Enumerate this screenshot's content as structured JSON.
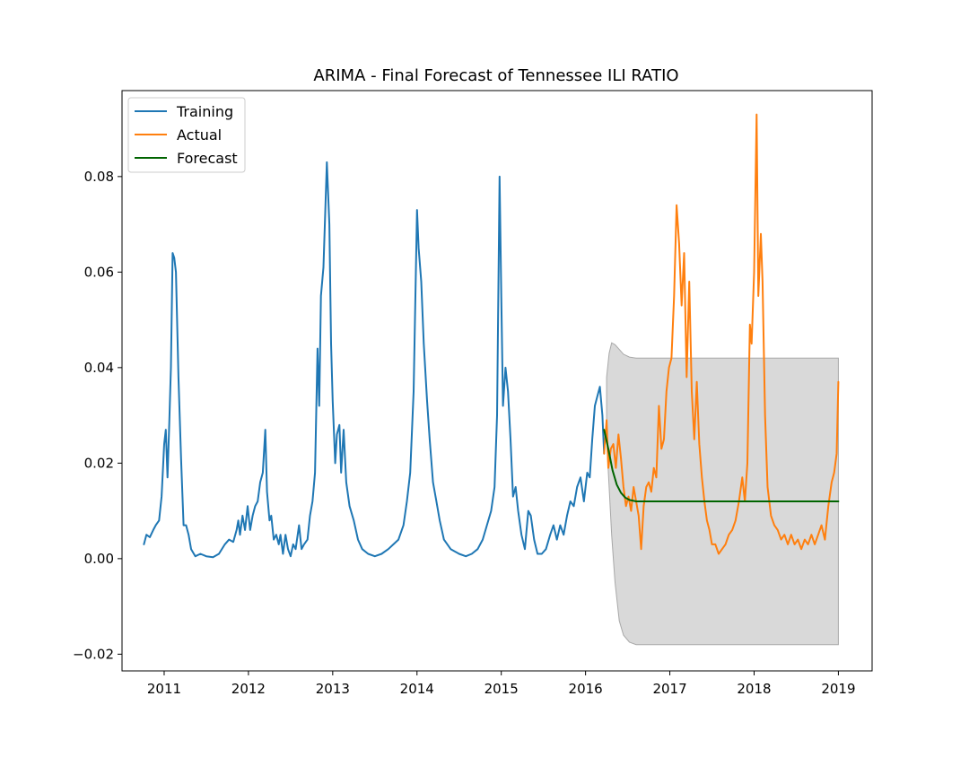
{
  "chart_data": {
    "type": "line",
    "title": "ARIMA - Final Forecast of Tennessee ILI RATIO",
    "xlabel": "",
    "ylabel": "",
    "xlim": [
      2010.5,
      2019.4
    ],
    "ylim": [
      -0.0235,
      0.098
    ],
    "x_ticks": [
      2011,
      2012,
      2013,
      2014,
      2015,
      2016,
      2017,
      2018,
      2019
    ],
    "x_tick_labels": [
      "2011",
      "2012",
      "2013",
      "2014",
      "2015",
      "2016",
      "2017",
      "2018",
      "2019"
    ],
    "y_ticks": [
      -0.02,
      0.0,
      0.02,
      0.04,
      0.06,
      0.08
    ],
    "y_tick_labels": [
      "−0.02",
      "0.00",
      "0.02",
      "0.04",
      "0.06",
      "0.08"
    ],
    "grid": false,
    "legend": {
      "position": "top-left",
      "entries": [
        "Training",
        "Actual",
        "Forecast"
      ]
    },
    "colors": {
      "Training": "#1f77b4",
      "Actual": "#ff7f0e",
      "Forecast": "#006400",
      "confidence_band": "#d9d9d9"
    },
    "series": [
      {
        "name": "Training",
        "points": [
          [
            2010.76,
            0.003
          ],
          [
            2010.79,
            0.005
          ],
          [
            2010.83,
            0.0045
          ],
          [
            2010.87,
            0.006
          ],
          [
            2010.9,
            0.007
          ],
          [
            2010.94,
            0.008
          ],
          [
            2010.97,
            0.013
          ],
          [
            2011.0,
            0.024
          ],
          [
            2011.02,
            0.027
          ],
          [
            2011.04,
            0.017
          ],
          [
            2011.06,
            0.028
          ],
          [
            2011.08,
            0.04
          ],
          [
            2011.1,
            0.064
          ],
          [
            2011.12,
            0.063
          ],
          [
            2011.14,
            0.06
          ],
          [
            2011.17,
            0.038
          ],
          [
            2011.2,
            0.021
          ],
          [
            2011.23,
            0.007
          ],
          [
            2011.26,
            0.007
          ],
          [
            2011.29,
            0.005
          ],
          [
            2011.32,
            0.002
          ],
          [
            2011.37,
            0.0005
          ],
          [
            2011.43,
            0.001
          ],
          [
            2011.5,
            0.0005
          ],
          [
            2011.58,
            0.0003
          ],
          [
            2011.65,
            0.001
          ],
          [
            2011.72,
            0.003
          ],
          [
            2011.77,
            0.004
          ],
          [
            2011.82,
            0.0035
          ],
          [
            2011.86,
            0.006
          ],
          [
            2011.88,
            0.008
          ],
          [
            2011.9,
            0.005
          ],
          [
            2011.93,
            0.009
          ],
          [
            2011.96,
            0.006
          ],
          [
            2011.99,
            0.011
          ],
          [
            2012.02,
            0.006
          ],
          [
            2012.05,
            0.009
          ],
          [
            2012.08,
            0.011
          ],
          [
            2012.11,
            0.012
          ],
          [
            2012.14,
            0.016
          ],
          [
            2012.17,
            0.018
          ],
          [
            2012.2,
            0.027
          ],
          [
            2012.22,
            0.014
          ],
          [
            2012.25,
            0.008
          ],
          [
            2012.27,
            0.009
          ],
          [
            2012.3,
            0.004
          ],
          [
            2012.33,
            0.005
          ],
          [
            2012.36,
            0.003
          ],
          [
            2012.38,
            0.005
          ],
          [
            2012.41,
            0.001
          ],
          [
            2012.44,
            0.005
          ],
          [
            2012.47,
            0.002
          ],
          [
            2012.5,
            0.0005
          ],
          [
            2012.53,
            0.003
          ],
          [
            2012.56,
            0.002
          ],
          [
            2012.6,
            0.007
          ],
          [
            2012.63,
            0.002
          ],
          [
            2012.66,
            0.003
          ],
          [
            2012.7,
            0.004
          ],
          [
            2012.73,
            0.009
          ],
          [
            2012.76,
            0.012
          ],
          [
            2012.79,
            0.018
          ],
          [
            2012.82,
            0.044
          ],
          [
            2012.84,
            0.032
          ],
          [
            2012.86,
            0.055
          ],
          [
            2012.89,
            0.061
          ],
          [
            2012.91,
            0.072
          ],
          [
            2012.93,
            0.083
          ],
          [
            2012.96,
            0.07
          ],
          [
            2012.98,
            0.045
          ],
          [
            2013.0,
            0.033
          ],
          [
            2013.03,
            0.02
          ],
          [
            2013.05,
            0.026
          ],
          [
            2013.08,
            0.028
          ],
          [
            2013.1,
            0.018
          ],
          [
            2013.13,
            0.027
          ],
          [
            2013.16,
            0.016
          ],
          [
            2013.2,
            0.011
          ],
          [
            2013.25,
            0.008
          ],
          [
            2013.3,
            0.004
          ],
          [
            2013.35,
            0.002
          ],
          [
            2013.42,
            0.001
          ],
          [
            2013.5,
            0.0005
          ],
          [
            2013.58,
            0.001
          ],
          [
            2013.66,
            0.002
          ],
          [
            2013.72,
            0.003
          ],
          [
            2013.78,
            0.004
          ],
          [
            2013.84,
            0.007
          ],
          [
            2013.88,
            0.012
          ],
          [
            2013.92,
            0.018
          ],
          [
            2013.96,
            0.035
          ],
          [
            2014.0,
            0.073
          ],
          [
            2014.02,
            0.065
          ],
          [
            2014.05,
            0.058
          ],
          [
            2014.08,
            0.045
          ],
          [
            2014.12,
            0.033
          ],
          [
            2014.15,
            0.025
          ],
          [
            2014.19,
            0.016
          ],
          [
            2014.23,
            0.012
          ],
          [
            2014.27,
            0.008
          ],
          [
            2014.32,
            0.004
          ],
          [
            2014.4,
            0.002
          ],
          [
            2014.5,
            0.001
          ],
          [
            2014.58,
            0.0005
          ],
          [
            2014.65,
            0.001
          ],
          [
            2014.72,
            0.002
          ],
          [
            2014.78,
            0.004
          ],
          [
            2014.83,
            0.007
          ],
          [
            2014.88,
            0.01
          ],
          [
            2014.92,
            0.015
          ],
          [
            2014.95,
            0.03
          ],
          [
            2014.98,
            0.08
          ],
          [
            2015.0,
            0.055
          ],
          [
            2015.02,
            0.032
          ],
          [
            2015.05,
            0.04
          ],
          [
            2015.08,
            0.035
          ],
          [
            2015.11,
            0.025
          ],
          [
            2015.14,
            0.013
          ],
          [
            2015.17,
            0.015
          ],
          [
            2015.2,
            0.01
          ],
          [
            2015.24,
            0.005
          ],
          [
            2015.28,
            0.002
          ],
          [
            2015.32,
            0.01
          ],
          [
            2015.35,
            0.009
          ],
          [
            2015.39,
            0.004
          ],
          [
            2015.43,
            0.001
          ],
          [
            2015.48,
            0.001
          ],
          [
            2015.53,
            0.002
          ],
          [
            2015.58,
            0.005
          ],
          [
            2015.62,
            0.007
          ],
          [
            2015.66,
            0.004
          ],
          [
            2015.7,
            0.007
          ],
          [
            2015.74,
            0.005
          ],
          [
            2015.78,
            0.009
          ],
          [
            2015.82,
            0.012
          ],
          [
            2015.86,
            0.011
          ],
          [
            2015.9,
            0.015
          ],
          [
            2015.94,
            0.017
          ],
          [
            2015.98,
            0.012
          ],
          [
            2016.02,
            0.018
          ],
          [
            2016.05,
            0.017
          ],
          [
            2016.08,
            0.025
          ],
          [
            2016.11,
            0.032
          ],
          [
            2016.14,
            0.034
          ],
          [
            2016.17,
            0.036
          ],
          [
            2016.2,
            0.03
          ],
          [
            2016.22,
            0.022
          ]
        ]
      },
      {
        "name": "Actual",
        "points": [
          [
            2016.22,
            0.022
          ],
          [
            2016.25,
            0.029
          ],
          [
            2016.27,
            0.019
          ],
          [
            2016.3,
            0.023
          ],
          [
            2016.33,
            0.024
          ],
          [
            2016.36,
            0.019
          ],
          [
            2016.39,
            0.026
          ],
          [
            2016.42,
            0.021
          ],
          [
            2016.45,
            0.015
          ],
          [
            2016.48,
            0.011
          ],
          [
            2016.51,
            0.013
          ],
          [
            2016.54,
            0.01
          ],
          [
            2016.57,
            0.015
          ],
          [
            2016.6,
            0.012
          ],
          [
            2016.63,
            0.009
          ],
          [
            2016.66,
            0.002
          ],
          [
            2016.69,
            0.011
          ],
          [
            2016.72,
            0.015
          ],
          [
            2016.75,
            0.016
          ],
          [
            2016.78,
            0.014
          ],
          [
            2016.81,
            0.019
          ],
          [
            2016.84,
            0.017
          ],
          [
            2016.87,
            0.032
          ],
          [
            2016.9,
            0.023
          ],
          [
            2016.93,
            0.025
          ],
          [
            2016.96,
            0.035
          ],
          [
            2016.99,
            0.04
          ],
          [
            2017.02,
            0.042
          ],
          [
            2017.05,
            0.055
          ],
          [
            2017.08,
            0.074
          ],
          [
            2017.11,
            0.066
          ],
          [
            2017.14,
            0.053
          ],
          [
            2017.17,
            0.064
          ],
          [
            2017.2,
            0.038
          ],
          [
            2017.23,
            0.058
          ],
          [
            2017.26,
            0.035
          ],
          [
            2017.29,
            0.025
          ],
          [
            2017.32,
            0.037
          ],
          [
            2017.35,
            0.024
          ],
          [
            2017.38,
            0.017
          ],
          [
            2017.41,
            0.012
          ],
          [
            2017.44,
            0.008
          ],
          [
            2017.47,
            0.006
          ],
          [
            2017.5,
            0.003
          ],
          [
            2017.54,
            0.003
          ],
          [
            2017.58,
            0.001
          ],
          [
            2017.62,
            0.002
          ],
          [
            2017.66,
            0.003
          ],
          [
            2017.7,
            0.005
          ],
          [
            2017.74,
            0.006
          ],
          [
            2017.78,
            0.008
          ],
          [
            2017.82,
            0.012
          ],
          [
            2017.86,
            0.017
          ],
          [
            2017.89,
            0.012
          ],
          [
            2017.92,
            0.02
          ],
          [
            2017.95,
            0.049
          ],
          [
            2017.97,
            0.045
          ],
          [
            2018.0,
            0.06
          ],
          [
            2018.03,
            0.093
          ],
          [
            2018.05,
            0.055
          ],
          [
            2018.08,
            0.068
          ],
          [
            2018.1,
            0.058
          ],
          [
            2018.13,
            0.03
          ],
          [
            2018.16,
            0.015
          ],
          [
            2018.2,
            0.009
          ],
          [
            2018.24,
            0.007
          ],
          [
            2018.28,
            0.006
          ],
          [
            2018.32,
            0.004
          ],
          [
            2018.36,
            0.005
          ],
          [
            2018.4,
            0.003
          ],
          [
            2018.44,
            0.005
          ],
          [
            2018.48,
            0.003
          ],
          [
            2018.52,
            0.004
          ],
          [
            2018.56,
            0.002
          ],
          [
            2018.6,
            0.004
          ],
          [
            2018.64,
            0.003
          ],
          [
            2018.68,
            0.005
          ],
          [
            2018.72,
            0.003
          ],
          [
            2018.76,
            0.005
          ],
          [
            2018.8,
            0.007
          ],
          [
            2018.84,
            0.004
          ],
          [
            2018.88,
            0.011
          ],
          [
            2018.92,
            0.016
          ],
          [
            2018.95,
            0.018
          ],
          [
            2018.98,
            0.022
          ],
          [
            2019.0,
            0.037
          ]
        ]
      },
      {
        "name": "Forecast",
        "points": [
          [
            2016.22,
            0.027
          ],
          [
            2016.27,
            0.023
          ],
          [
            2016.32,
            0.0185
          ],
          [
            2016.37,
            0.0155
          ],
          [
            2016.42,
            0.0138
          ],
          [
            2016.47,
            0.0128
          ],
          [
            2016.52,
            0.0123
          ],
          [
            2016.6,
            0.012
          ],
          [
            2016.75,
            0.012
          ],
          [
            2017.0,
            0.012
          ],
          [
            2017.5,
            0.012
          ],
          [
            2018.0,
            0.012
          ],
          [
            2018.5,
            0.012
          ],
          [
            2019.0,
            0.012
          ]
        ]
      }
    ],
    "confidence_interval": {
      "upper": [
        [
          2016.25,
          0.038
        ],
        [
          2016.28,
          0.043
        ],
        [
          2016.31,
          0.0452
        ],
        [
          2016.35,
          0.0448
        ],
        [
          2016.4,
          0.0438
        ],
        [
          2016.45,
          0.0428
        ],
        [
          2016.52,
          0.0422
        ],
        [
          2016.6,
          0.042
        ],
        [
          2017.0,
          0.042
        ],
        [
          2018.0,
          0.042
        ],
        [
          2019.0,
          0.042
        ]
      ],
      "lower": [
        [
          2019.0,
          -0.018
        ],
        [
          2018.0,
          -0.018
        ],
        [
          2017.0,
          -0.018
        ],
        [
          2016.6,
          -0.018
        ],
        [
          2016.52,
          -0.0175
        ],
        [
          2016.45,
          -0.016
        ],
        [
          2016.4,
          -0.013
        ],
        [
          2016.35,
          -0.005
        ],
        [
          2016.31,
          0.005
        ],
        [
          2016.28,
          0.015
        ],
        [
          2016.25,
          0.025
        ]
      ]
    }
  }
}
